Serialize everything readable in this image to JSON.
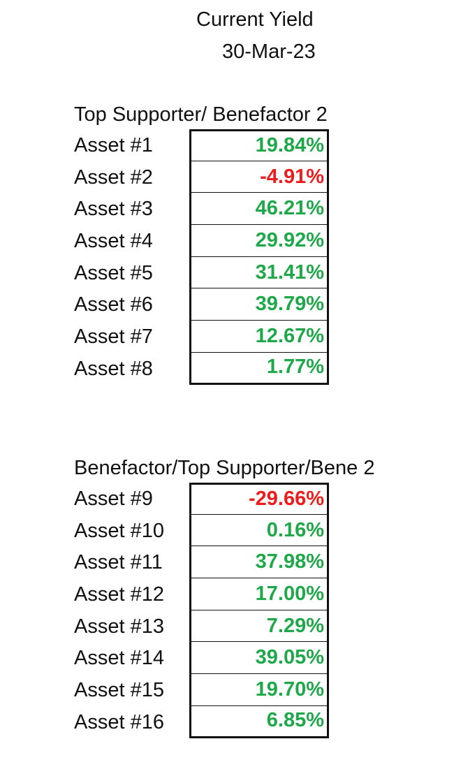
{
  "header": {
    "title": "Current Yield",
    "date": "30-Mar-23"
  },
  "colors": {
    "positive": "#1fa84a",
    "negative": "#ee1c1c"
  },
  "sections": [
    {
      "heading": "Top Supporter/ Benefactor 2",
      "rows": [
        {
          "label": "Asset #1",
          "value": "19.84%",
          "sign": "pos"
        },
        {
          "label": "Asset #2",
          "value": "-4.91%",
          "sign": "neg"
        },
        {
          "label": "Asset #3",
          "value": "46.21%",
          "sign": "pos"
        },
        {
          "label": "Asset #4",
          "value": "29.92%",
          "sign": "pos"
        },
        {
          "label": "Asset #5",
          "value": "31.41%",
          "sign": "pos"
        },
        {
          "label": "Asset #6",
          "value": "39.79%",
          "sign": "pos"
        },
        {
          "label": "Asset #7",
          "value": "12.67%",
          "sign": "pos"
        },
        {
          "label": "Asset #8",
          "value": "1.77%",
          "sign": "pos"
        }
      ]
    },
    {
      "heading": "Benefactor/Top Supporter/Bene 2",
      "rows": [
        {
          "label": "Asset #9",
          "value": "-29.66%",
          "sign": "neg"
        },
        {
          "label": "Asset #10",
          "value": "0.16%",
          "sign": "pos"
        },
        {
          "label": "Asset #11",
          "value": "37.98%",
          "sign": "pos"
        },
        {
          "label": "Asset #12",
          "value": "17.00%",
          "sign": "pos"
        },
        {
          "label": "Asset #13",
          "value": "7.29%",
          "sign": "pos"
        },
        {
          "label": "Asset #14",
          "value": "39.05%",
          "sign": "pos"
        },
        {
          "label": "Asset #15",
          "value": "19.70%",
          "sign": "pos"
        },
        {
          "label": "Asset #16",
          "value": "6.85%",
          "sign": "pos"
        }
      ]
    }
  ]
}
